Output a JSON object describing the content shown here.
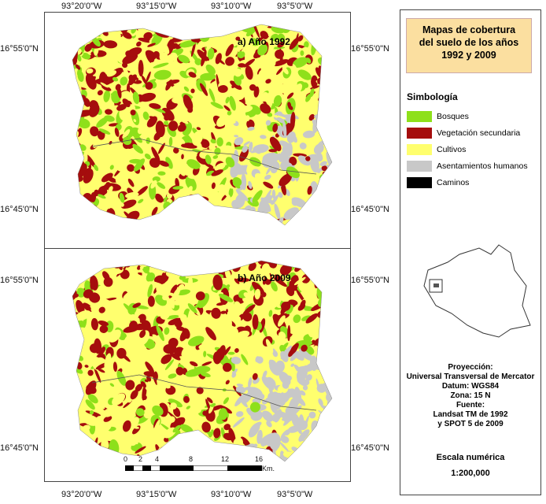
{
  "coords": {
    "top": [
      "93°20'0\"W",
      "93°15'0\"W",
      "93°10'0\"W",
      "93°5'0\"W"
    ],
    "left": [
      "16°55'0\"N",
      "16°45'0\"N",
      "16°55'0\"N",
      "16°45'0\"N"
    ],
    "right": [
      "16°55'0\"N",
      "16°45'0\"N",
      "16°55'0\"N",
      "16°45'0\"N"
    ]
  },
  "panels": [
    {
      "title": "a) Año 1992"
    },
    {
      "title": "b) Año 2009"
    }
  ],
  "scale_bar": {
    "ticks": [
      "0",
      "2",
      "4",
      "8",
      "12",
      "16"
    ],
    "unit": "Km."
  },
  "legend": {
    "title": [
      "Mapas de cobertura",
      "del suelo de los años",
      "1992 y 2009"
    ],
    "heading": "Simbología",
    "items": [
      {
        "label": "Bosques",
        "color": "#8ee01a"
      },
      {
        "label": "Vegetación secundaria",
        "color": "#a50d0d"
      },
      {
        "label": "Cultivos",
        "color": "#ffff6e"
      },
      {
        "label": "Asentamientos humanos",
        "color": "#c8c8c8"
      },
      {
        "label": "Caminos",
        "color": "#000000"
      }
    ],
    "info": [
      "Proyección:",
      "Universal Transversal de Mercator",
      "Datum: WGS84",
      "Zona: 15 N",
      "Fuente:",
      "Landsat  TM de 1992",
      "y SPOT 5 de 2009"
    ],
    "scale_label": "Escala numérica",
    "scale_value": "1:200,000"
  }
}
